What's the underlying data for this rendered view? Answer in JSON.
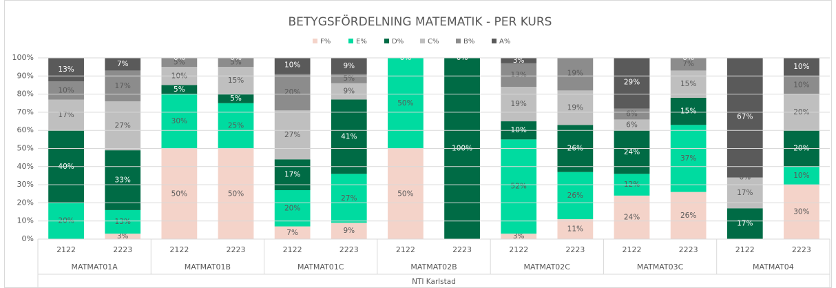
{
  "chart_data": {
    "type": "stacked_bar",
    "title": "BETYGSFÖRDELNING MATEMATIK - PER KURS",
    "categories": [
      "2122",
      "2223",
      "2122",
      "2223",
      "2122",
      "2223",
      "2122",
      "2223",
      "2122",
      "2223",
      "2122",
      "2223",
      "2122",
      "2223"
    ],
    "groups": [
      "MATMAT01A",
      "MATMAT01B",
      "MATMAT01C",
      "MATMAT02B",
      "MATMAT02C",
      "MATMAT03C",
      "MATMAT04"
    ],
    "group_label": "NTI Karlstad",
    "ylim": [
      0,
      100
    ],
    "yticks": [
      {
        "value": 0,
        "label": "0%"
      },
      {
        "value": 10,
        "label": "10%"
      },
      {
        "value": 20,
        "label": "20%"
      },
      {
        "value": 30,
        "label": "30%"
      },
      {
        "value": 40,
        "label": "40%"
      },
      {
        "value": 50,
        "label": "50%"
      },
      {
        "value": 60,
        "label": "60%"
      },
      {
        "value": 70,
        "label": "70%"
      },
      {
        "value": 80,
        "label": "80%"
      },
      {
        "value": 90,
        "label": "90%"
      },
      {
        "value": 100,
        "label": "100%"
      }
    ],
    "grid": true,
    "legend": "top",
    "series": [
      {
        "name": "F%",
        "color": "#f4d3c9",
        "values": [
          0,
          3,
          50,
          50,
          7,
          9,
          50,
          0,
          3,
          11,
          24,
          26,
          0,
          30
        ],
        "value_labels": [
          "0%",
          "3%",
          "50%",
          "50%",
          "7%",
          "9%",
          "50%",
          "0%",
          "3%",
          "11%",
          "24%",
          "26%",
          "0%",
          "30%"
        ]
      },
      {
        "name": "E%",
        "color": "#00dba0",
        "values": [
          20,
          13,
          30,
          25,
          20,
          27,
          50,
          0,
          52,
          26,
          12,
          37,
          0,
          10
        ],
        "value_labels": [
          "20%",
          "13%",
          "30%",
          "25%",
          "20%",
          "27%",
          "50%",
          "0%",
          "52%",
          "26%",
          "12%",
          "37%",
          "0%",
          "10%"
        ]
      },
      {
        "name": "D%",
        "color": "#006b45",
        "values": [
          40,
          33,
          5,
          5,
          17,
          41,
          0,
          100,
          10,
          26,
          24,
          15,
          17,
          20
        ],
        "value_labels": [
          "40%",
          "33%",
          "5%",
          "5%",
          "17%",
          "41%",
          "0%",
          "100%",
          "10%",
          "26%",
          "24%",
          "15%",
          "17%",
          "20%"
        ]
      },
      {
        "name": "C%",
        "color": "#bfbfbf",
        "values": [
          17,
          27,
          10,
          15,
          27,
          9,
          0,
          0,
          19,
          19,
          6,
          15,
          17,
          20
        ],
        "value_labels": [
          "17%",
          "27%",
          "10%",
          "15%",
          "27%",
          "9%",
          "0%",
          "0%",
          "19%",
          "19%",
          "6%",
          "15%",
          "17%",
          "20%"
        ]
      },
      {
        "name": "B%",
        "color": "#8c8c8c",
        "values": [
          10,
          17,
          5,
          5,
          20,
          5,
          0,
          0,
          13,
          19,
          6,
          7,
          0,
          10
        ],
        "value_labels": [
          "10%",
          "17%",
          "5%",
          "5%",
          "20%",
          "5%",
          "0%",
          "0%",
          "13%",
          "19%",
          "6%",
          "7%",
          "0%",
          "10%"
        ]
      },
      {
        "name": "A%",
        "color": "#5a5a5a",
        "values": [
          13,
          7,
          0,
          0,
          10,
          9,
          0,
          0,
          3,
          0,
          29,
          0,
          67,
          10
        ],
        "value_labels": [
          "13%",
          "7%",
          "0%",
          "0%",
          "10%",
          "9%",
          "0%",
          "0%",
          "3%",
          "0%",
          "29%",
          "0%",
          "67%",
          "10%"
        ]
      }
    ]
  }
}
